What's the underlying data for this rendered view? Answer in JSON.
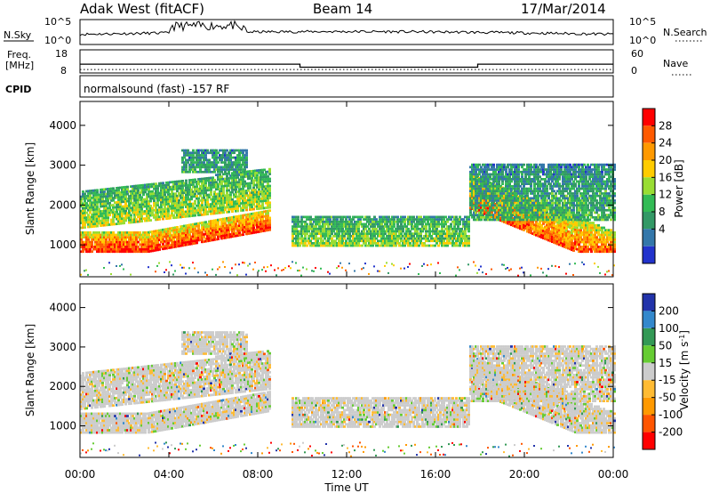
{
  "header": {
    "station": "Adak West (fitACF)",
    "beam": "Beam 14",
    "date": "17/Mar/2014"
  },
  "noise_panel": {
    "left_label": "N.Sky",
    "right_label": "N.Search",
    "left_ticks": [
      "10^5",
      "10^0"
    ],
    "right_ticks": [
      "10^5",
      "10^0"
    ]
  },
  "freq_panel": {
    "left_label_1": "Freq.",
    "left_label_2": "[MHz]",
    "right_label": "Nave",
    "left_ticks": [
      "18",
      "8"
    ],
    "right_ticks": [
      "60",
      "0"
    ],
    "freq_mhz": [
      {
        "start_h": 0,
        "end_h": 9.9,
        "value": 11.8
      },
      {
        "start_h": 9.9,
        "end_h": 17.9,
        "value": 10.5
      },
      {
        "start_h": 17.9,
        "end_h": 24,
        "value": 11.8
      }
    ],
    "nave_level": 9
  },
  "cpid": {
    "label": "CPID",
    "text": "normalsound (fast) -157 RF"
  },
  "chart_data": [
    {
      "type": "heatmap",
      "ylabel": "Slant Range [km]",
      "xlim": [
        0,
        24
      ],
      "ylim": [
        200,
        4600
      ],
      "yticks": [
        "1000",
        "2000",
        "3000",
        "4000"
      ],
      "colorbar": {
        "label": "Power [dB]",
        "ticks": [
          "28",
          "24",
          "20",
          "16",
          "12",
          "8",
          "4"
        ],
        "colors": [
          "#ff0000",
          "#ff5a00",
          "#ff9900",
          "#ffcc00",
          "#99dd33",
          "#33bb55",
          "#339966",
          "#3377aa",
          "#2233cc"
        ]
      }
    },
    {
      "type": "heatmap",
      "xlabel": "Time UT",
      "ylabel": "Slant Range [km]",
      "xlim": [
        0,
        24
      ],
      "ylim": [
        200,
        4600
      ],
      "yticks": [
        "1000",
        "2000",
        "3000",
        "4000"
      ],
      "xticks": [
        "00:00",
        "04:00",
        "08:00",
        "12:00",
        "16:00",
        "20:00",
        "00:00"
      ],
      "colorbar": {
        "label": "Velocity [m s",
        "label_sup": "-1",
        "label_end": "]",
        "ticks": [
          "200",
          "100",
          "50",
          "15",
          "-15",
          "-50",
          "-100",
          "-200"
        ],
        "colors": [
          "#2233aa",
          "#3388cc",
          "#339955",
          "#66cc33",
          "#cccccc",
          "#ffbb33",
          "#ff9900",
          "#ff5500",
          "#ff0000"
        ]
      }
    }
  ]
}
